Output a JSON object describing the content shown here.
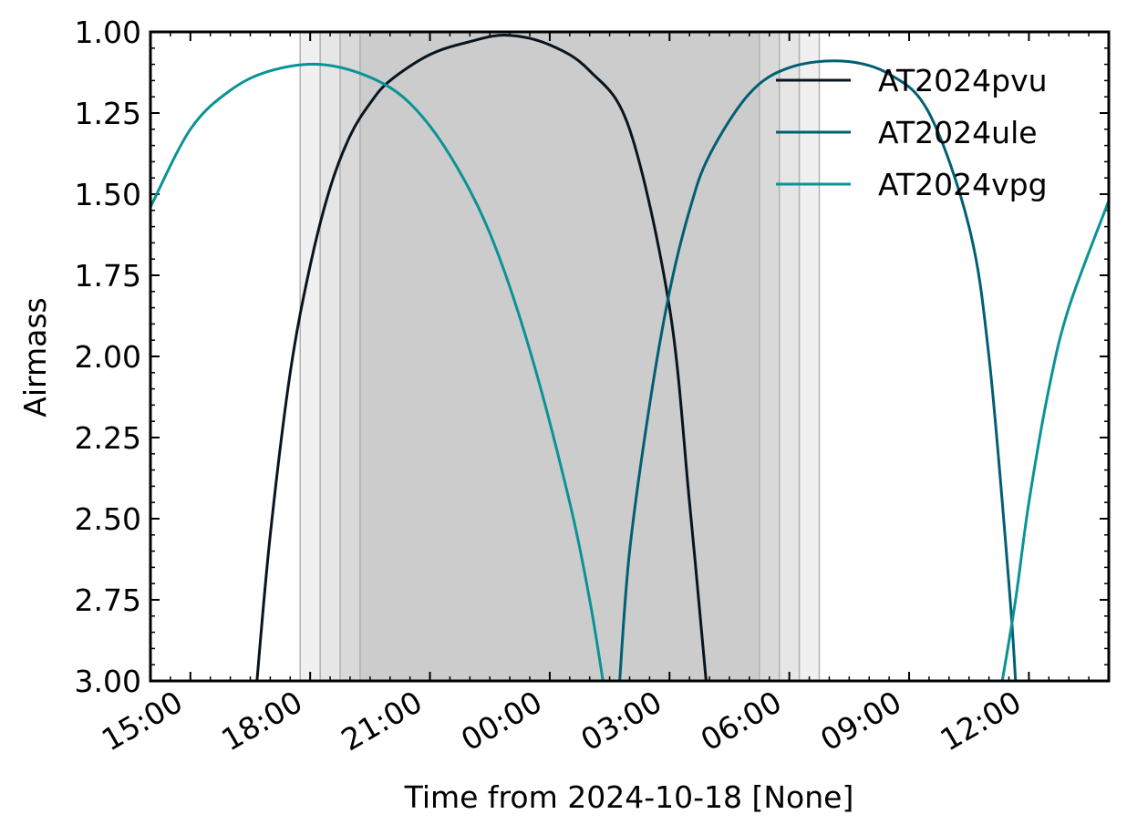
{
  "chart_data": {
    "type": "line",
    "xlabel": "Time from 2024-10-18 [None]",
    "ylabel": "Airmass",
    "x_range": [
      "2024-10-18 14:00",
      "2024-10-19 14:00"
    ],
    "ylim": [
      3.0,
      1.0
    ],
    "y_inverted": true,
    "x_ticks": [
      "15:00",
      "18:00",
      "21:00",
      "00:00",
      "03:00",
      "06:00",
      "09:00",
      "12:00"
    ],
    "y_ticks": [
      "1.00",
      "1.25",
      "1.50",
      "1.75",
      "2.00",
      "2.25",
      "2.50",
      "2.75",
      "3.00"
    ],
    "grid": false,
    "legend_position": "top-right",
    "twilight_bands": [
      {
        "start": "2024-10-18 17:45",
        "end": "2024-10-19 06:45",
        "shade": "#f0f0f0"
      },
      {
        "start": "2024-10-18 18:15",
        "end": "2024-10-19 06:15",
        "shade": "#e6e6e6"
      },
      {
        "start": "2024-10-18 18:45",
        "end": "2024-10-19 05:45",
        "shade": "#d9d9d9"
      },
      {
        "start": "2024-10-18 19:15",
        "end": "2024-10-19 05:15",
        "shade": "#cccccc"
      }
    ],
    "series": [
      {
        "name": "AT2024pvu",
        "color": "#08151f",
        "transit": "2024-10-18 22:55",
        "points": [
          [
            "2024-10-18 16:40",
            3.0
          ],
          [
            "2024-10-18 17:00",
            2.55
          ],
          [
            "2024-10-18 17:30",
            2.05
          ],
          [
            "2024-10-18 18:00",
            1.72
          ],
          [
            "2024-10-18 18:30",
            1.48
          ],
          [
            "2024-10-18 19:00",
            1.32
          ],
          [
            "2024-10-18 19:30",
            1.22
          ],
          [
            "2024-10-18 20:00",
            1.15
          ],
          [
            "2024-10-18 21:00",
            1.07
          ],
          [
            "2024-10-18 22:00",
            1.03
          ],
          [
            "2024-10-18 22:55",
            1.01
          ],
          [
            "2024-10-19 00:00",
            1.04
          ],
          [
            "2024-10-19 01:00",
            1.12
          ],
          [
            "2024-10-19 02:00",
            1.3
          ],
          [
            "2024-10-19 03:00",
            1.85
          ],
          [
            "2024-10-19 03:30",
            2.45
          ],
          [
            "2024-10-19 03:55",
            3.0
          ]
        ]
      },
      {
        "name": "AT2024ule",
        "color": "#005f73",
        "transit": "2024-10-19 07:20",
        "points": [
          [
            "2024-10-19 01:45",
            3.0
          ],
          [
            "2024-10-19 02:00",
            2.6
          ],
          [
            "2024-10-19 02:30",
            2.15
          ],
          [
            "2024-10-19 03:00",
            1.8
          ],
          [
            "2024-10-19 03:30",
            1.55
          ],
          [
            "2024-10-19 04:00",
            1.38
          ],
          [
            "2024-10-19 05:00",
            1.19
          ],
          [
            "2024-10-19 06:00",
            1.11
          ],
          [
            "2024-10-19 07:20",
            1.09
          ],
          [
            "2024-10-19 08:30",
            1.13
          ],
          [
            "2024-10-19 09:30",
            1.25
          ],
          [
            "2024-10-19 10:30",
            1.6
          ],
          [
            "2024-10-19 11:00",
            2.0
          ],
          [
            "2024-10-19 11:30",
            2.7
          ],
          [
            "2024-10-19 11:40",
            3.0
          ]
        ]
      },
      {
        "name": "AT2024vpg",
        "color": "#0a9396",
        "transit": "2024-10-18 18:15",
        "points": [
          [
            "2024-10-18 14:00",
            1.54
          ],
          [
            "2024-10-18 15:00",
            1.3
          ],
          [
            "2024-10-18 16:00",
            1.18
          ],
          [
            "2024-10-18 17:00",
            1.12
          ],
          [
            "2024-10-18 18:15",
            1.1
          ],
          [
            "2024-10-18 19:30",
            1.14
          ],
          [
            "2024-10-18 20:30",
            1.22
          ],
          [
            "2024-10-18 21:30",
            1.38
          ],
          [
            "2024-10-18 22:30",
            1.62
          ],
          [
            "2024-10-18 23:30",
            1.98
          ],
          [
            "2024-10-19 00:30",
            2.45
          ],
          [
            "2024-10-19 01:00",
            2.75
          ],
          [
            "2024-10-19 01:20",
            3.0
          ],
          [
            "2024-10-19 11:20",
            3.0
          ],
          [
            "2024-10-19 11:40",
            2.75
          ],
          [
            "2024-10-19 12:00",
            2.45
          ],
          [
            "2024-10-19 12:30",
            2.1
          ],
          [
            "2024-10-19 13:00",
            1.85
          ],
          [
            "2024-10-19 14:00",
            1.52
          ]
        ]
      }
    ]
  }
}
